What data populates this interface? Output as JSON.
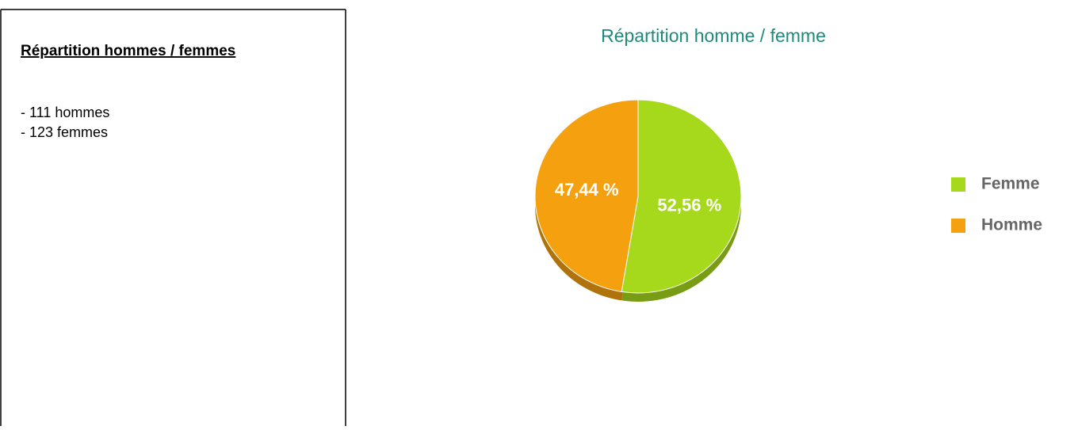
{
  "document": {
    "heading": "Répartition hommes / femmes",
    "lines": [
      "- 111 hommes",
      "- 123 femmes"
    ]
  },
  "chart_data": {
    "type": "pie",
    "title": "Répartition homme / femme",
    "categories": [
      "Femme",
      "Homme"
    ],
    "values": [
      52.56,
      47.44
    ],
    "value_labels": [
      "52,56 %",
      "47,44 %"
    ],
    "colors": [
      "#a6d81c",
      "#f5a00f"
    ]
  }
}
